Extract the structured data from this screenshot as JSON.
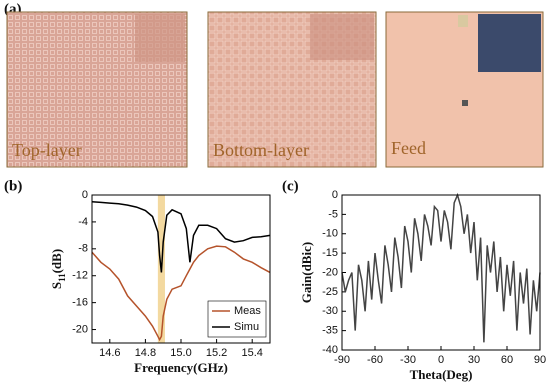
{
  "panel_a": {
    "label": "(a)",
    "captions": [
      "Top-layer",
      "Bottom-layer",
      "Feed"
    ]
  },
  "chart_data": [
    {
      "type": "line",
      "panel_label": "(b)",
      "xlabel": "Frequency(GHz)",
      "ylabel": [
        "S",
        "11",
        "(dB)"
      ],
      "x": [
        14.5,
        14.55,
        14.6,
        14.65,
        14.7,
        14.75,
        14.8,
        14.84,
        14.87,
        14.88,
        14.89,
        14.9,
        14.92,
        14.95,
        15.0,
        15.03,
        15.05,
        15.07,
        15.1,
        15.15,
        15.2,
        15.25,
        15.3,
        15.35,
        15.4,
        15.45,
        15.5
      ],
      "series": [
        {
          "name": "Meas",
          "color": "#b5532b",
          "values": [
            -8.5,
            -10,
            -11,
            -12.5,
            -15,
            -16.5,
            -18,
            -19.5,
            -21,
            -21.5,
            -21,
            -18,
            -15.5,
            -14,
            -13.5,
            -12,
            -11,
            -10,
            -9,
            -8,
            -7.6,
            -7.7,
            -8.5,
            -9.5,
            -10,
            -10.8,
            -11.5
          ]
        },
        {
          "name": "Simu",
          "color": "#000000",
          "values": [
            -1.0,
            -1.1,
            -1.2,
            -1.3,
            -1.5,
            -1.8,
            -2.3,
            -3.2,
            -5.5,
            -9,
            -11.5,
            -7,
            -3,
            -2.2,
            -2.8,
            -5,
            -10,
            -6,
            -4.5,
            -4.5,
            -5,
            -6.5,
            -7,
            -6.8,
            -6.3,
            -6.2,
            -6
          ]
        }
      ],
      "highlight": [
        14.87,
        14.91
      ],
      "highlight_color": "#f3d9a0",
      "xlim": [
        14.5,
        15.5
      ],
      "xticks": [
        14.6,
        14.8,
        {
          "value": 15,
          "label": "15.0"
        },
        15.2,
        15.4
      ],
      "ylim": [
        -22,
        0
      ],
      "yticks": [
        0,
        -4,
        -8,
        -12,
        -16,
        -20
      ],
      "legend": "lower right"
    },
    {
      "type": "line",
      "panel_label": "(c)",
      "xlabel": "Theta(Deg)",
      "ylabel": [
        "Gain(dBic)"
      ],
      "x": [
        -90,
        -87,
        -84,
        -81,
        -78,
        -75,
        -72,
        -69,
        -66,
        -63,
        -60,
        -57,
        -54,
        -51,
        -48,
        -45,
        -42,
        -39,
        -36,
        -33,
        -30,
        -27,
        -24,
        -21,
        -18,
        -15,
        -12,
        -9,
        -6,
        -3,
        0,
        3,
        6,
        9,
        12,
        15,
        18,
        21,
        24,
        27,
        30,
        33,
        36,
        39,
        42,
        45,
        48,
        51,
        54,
        57,
        60,
        63,
        66,
        69,
        72,
        75,
        78,
        81,
        84,
        87,
        90
      ],
      "series": [
        {
          "color": "#444444",
          "values": [
            -20,
            -25,
            -22,
            -20,
            -35,
            -18,
            -22,
            -30,
            -17,
            -27,
            -15,
            -22,
            -28,
            -13,
            -18,
            -25,
            -11,
            -16,
            -24,
            -8,
            -12,
            -20,
            -6,
            -10,
            -17,
            -5,
            -8,
            -13,
            -3,
            -4,
            -12,
            -4,
            -7,
            -14,
            -2,
            0,
            -3,
            -10,
            -5,
            -15,
            -7,
            -22,
            -11,
            -38,
            -13,
            -20,
            -12,
            -25,
            -16,
            -30,
            -18,
            -26,
            -17,
            -35,
            -20,
            -28,
            -19,
            -36,
            -22,
            -30,
            -20
          ]
        }
      ],
      "xlim": [
        -90,
        90
      ],
      "xticks": [
        -90,
        -60,
        -30,
        0,
        30,
        60,
        90
      ],
      "ylim": [
        -40,
        0
      ],
      "yticks": [
        0,
        -5,
        -10,
        -15,
        -20,
        -25,
        -30,
        -35,
        -40
      ]
    }
  ]
}
